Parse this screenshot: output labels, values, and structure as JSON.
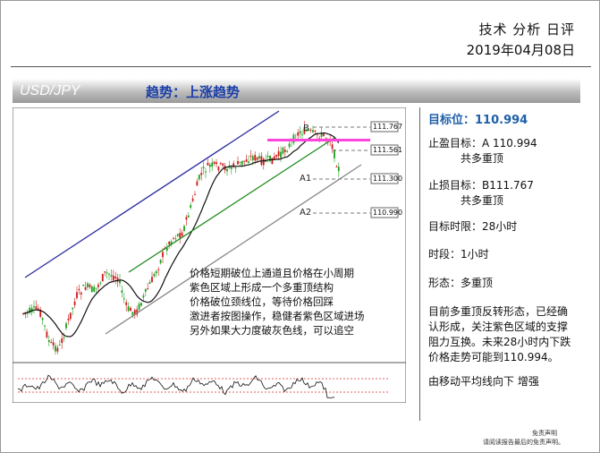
{
  "header": {
    "title": "技术 分析 日评",
    "date": "2019年04月08日"
  },
  "band": {
    "pair": "USD/JPY",
    "trend": "趋势：上涨趋势"
  },
  "chart": {
    "levels": [
      {
        "name": "B",
        "value": "111.767"
      },
      {
        "name": "",
        "value": "111.561"
      },
      {
        "name": "A1",
        "value": "111.300"
      },
      {
        "name": "A2",
        "value": "110.990"
      }
    ],
    "annotation": [
      "价格短期破位上通道且价格在小周期",
      "紫色区域上形成一个多重顶结构",
      "价格破位颈线位，等待价格回踩",
      "激进者按图操作，稳健者紫色区域进场",
      "另外如果大力度破灰色线，可以追空"
    ],
    "colors": {
      "channel_upper": "#2a2aa0",
      "trendline": "#1c8a1c",
      "lower_channel": "#8a8a8a",
      "zone": "#ff44dd",
      "bull": "#1aa01a",
      "bear": "#d01818",
      "ma": "#111111"
    }
  },
  "right_panel": {
    "target": "目标位：110.994",
    "take_profit": {
      "label": "止盈目标：A 110.994",
      "note": "共多重顶"
    },
    "stop_loss": {
      "label": "止损目标：B111.767",
      "note": "共多重顶"
    },
    "horizon": "目标时限：28小时",
    "timeframe": "时段：1小时",
    "pattern": "形态：多重顶",
    "summary_lines": [
      "目前多重顶反转形态，已经确",
      "认形成，关注紫色区域的支撑",
      "阻力互换。未来28小时内下跌",
      "价格走势可能到110.994。"
    ],
    "ma_note": "由移动平均线向下 增强"
  },
  "footer": {
    "disclaimer_title": "免责声明",
    "disclaimer_text": "请阅读报告最后的免责声明。"
  }
}
